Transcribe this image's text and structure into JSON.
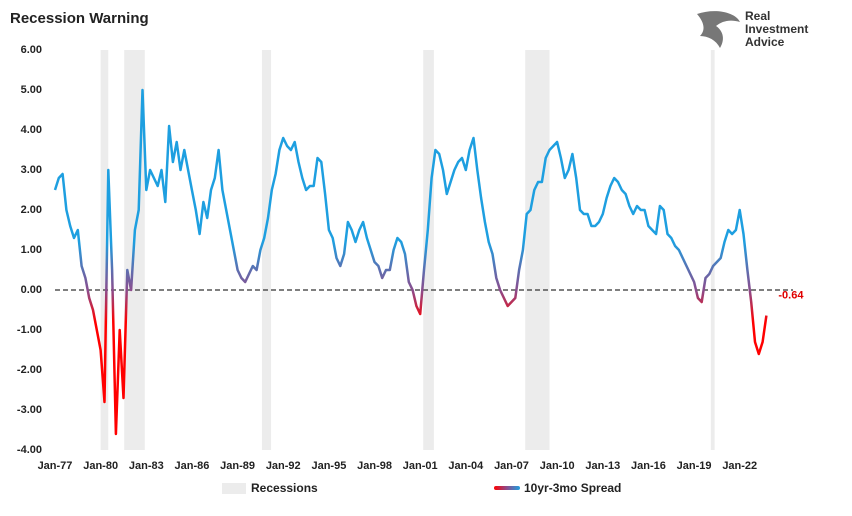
{
  "chart_data": {
    "type": "line",
    "title": "Recession Warning",
    "logo": [
      "Real",
      "Investment",
      "Advice"
    ],
    "x": [
      1977,
      1977.25,
      1977.5,
      1977.75,
      1978,
      1978.25,
      1978.5,
      1978.75,
      1979,
      1979.25,
      1979.5,
      1979.75,
      1980,
      1980.25,
      1980.5,
      1980.75,
      1981,
      1981.25,
      1981.5,
      1981.75,
      1982,
      1982.25,
      1982.5,
      1982.75,
      1983,
      1983.25,
      1983.5,
      1983.75,
      1984,
      1984.25,
      1984.5,
      1984.75,
      1985,
      1985.25,
      1985.5,
      1985.75,
      1986,
      1986.25,
      1986.5,
      1986.75,
      1987,
      1987.25,
      1987.5,
      1987.75,
      1988,
      1988.25,
      1988.5,
      1988.75,
      1989,
      1989.25,
      1989.5,
      1989.75,
      1990,
      1990.25,
      1990.5,
      1990.75,
      1991,
      1991.25,
      1991.5,
      1991.75,
      1992,
      1992.25,
      1992.5,
      1992.75,
      1993,
      1993.25,
      1993.5,
      1993.75,
      1994,
      1994.25,
      1994.5,
      1994.75,
      1995,
      1995.25,
      1995.5,
      1995.75,
      1996,
      1996.25,
      1996.5,
      1996.75,
      1997,
      1997.25,
      1997.5,
      1997.75,
      1998,
      1998.25,
      1998.5,
      1998.75,
      1999,
      1999.25,
      1999.5,
      1999.75,
      2000,
      2000.25,
      2000.5,
      2000.75,
      2001,
      2001.25,
      2001.5,
      2001.75,
      2002,
      2002.25,
      2002.5,
      2002.75,
      2003,
      2003.25,
      2003.5,
      2003.75,
      2004,
      2004.25,
      2004.5,
      2004.75,
      2005,
      2005.25,
      2005.5,
      2005.75,
      2006,
      2006.25,
      2006.5,
      2006.75,
      2007,
      2007.25,
      2007.5,
      2007.75,
      2008,
      2008.25,
      2008.5,
      2008.75,
      2009,
      2009.25,
      2009.5,
      2009.75,
      2010,
      2010.25,
      2010.5,
      2010.75,
      2011,
      2011.25,
      2011.5,
      2011.75,
      2012,
      2012.25,
      2012.5,
      2012.75,
      2013,
      2013.25,
      2013.5,
      2013.75,
      2014,
      2014.25,
      2014.5,
      2014.75,
      2015,
      2015.25,
      2015.5,
      2015.75,
      2016,
      2016.25,
      2016.5,
      2016.75,
      2017,
      2017.25,
      2017.5,
      2017.75,
      2018,
      2018.25,
      2018.5,
      2018.75,
      2019,
      2019.25,
      2019.5,
      2019.75,
      2020,
      2020.25,
      2020.5,
      2020.75,
      2021,
      2021.25,
      2021.5,
      2021.75,
      2022,
      2022.25,
      2022.5,
      2022.75,
      2023,
      2023.25,
      2023.5,
      2023.75
    ],
    "series": [
      {
        "name": "10yr-3mo Spread",
        "colors": [
          "#1e9fe0",
          "#8a4d8e",
          "#ff0000"
        ],
        "values": [
          2.5,
          2.8,
          2.9,
          2.0,
          1.6,
          1.3,
          1.5,
          0.6,
          0.3,
          -0.2,
          -0.5,
          -1.0,
          -1.5,
          -2.8,
          3.0,
          0.5,
          -3.6,
          -1.0,
          -2.7,
          0.5,
          0.0,
          1.5,
          2.0,
          5.0,
          2.5,
          3.0,
          2.8,
          2.6,
          3.0,
          2.2,
          4.1,
          3.2,
          3.7,
          3.0,
          3.5,
          3.0,
          2.5,
          2.0,
          1.4,
          2.2,
          1.8,
          2.5,
          2.8,
          3.5,
          2.5,
          2.0,
          1.5,
          1.0,
          0.5,
          0.3,
          0.2,
          0.4,
          0.6,
          0.5,
          1.0,
          1.3,
          1.8,
          2.5,
          2.9,
          3.5,
          3.8,
          3.6,
          3.5,
          3.7,
          3.2,
          2.8,
          2.5,
          2.6,
          2.6,
          3.3,
          3.2,
          2.4,
          1.5,
          1.3,
          0.8,
          0.6,
          0.9,
          1.7,
          1.5,
          1.2,
          1.5,
          1.7,
          1.3,
          1.0,
          0.7,
          0.6,
          0.3,
          0.5,
          0.5,
          1.0,
          1.3,
          1.2,
          0.9,
          0.2,
          0.0,
          -0.4,
          -0.6,
          0.5,
          1.5,
          2.8,
          3.5,
          3.4,
          3.0,
          2.4,
          2.7,
          3.0,
          3.2,
          3.3,
          3.0,
          3.5,
          3.8,
          3.0,
          2.3,
          1.7,
          1.2,
          0.9,
          0.3,
          0.0,
          -0.2,
          -0.4,
          -0.3,
          -0.2,
          0.5,
          1.0,
          1.9,
          2.0,
          2.5,
          2.7,
          2.7,
          3.3,
          3.5,
          3.6,
          3.7,
          3.3,
          2.8,
          3.0,
          3.4,
          2.8,
          2.0,
          1.9,
          1.9,
          1.6,
          1.6,
          1.7,
          1.9,
          2.3,
          2.6,
          2.8,
          2.7,
          2.5,
          2.4,
          2.1,
          1.9,
          2.1,
          2.0,
          2.0,
          1.6,
          1.5,
          1.4,
          2.1,
          2.0,
          1.4,
          1.3,
          1.1,
          1.0,
          0.8,
          0.6,
          0.4,
          0.2,
          -0.2,
          -0.3,
          0.3,
          0.4,
          0.6,
          0.7,
          0.8,
          1.2,
          1.5,
          1.4,
          1.5,
          2.0,
          1.4,
          0.5,
          -0.3,
          -1.3,
          -1.6,
          -1.3,
          -0.64
        ],
        "value_labels": {
          "187": "-0.64"
        }
      }
    ],
    "recessions": {
      "name": "Recessions",
      "color": "#ececec",
      "periods": [
        [
          1980.0,
          1980.5
        ],
        [
          1981.55,
          1982.9
        ],
        [
          1990.6,
          1991.2
        ],
        [
          2001.2,
          2001.9
        ],
        [
          2007.9,
          2009.5
        ],
        [
          2020.1,
          2020.35
        ]
      ]
    },
    "hline": 0,
    "xlim": [
      1977,
      2025.5
    ],
    "xticks": [
      {
        "value": 1977,
        "label": "Jan-77"
      },
      {
        "value": 1980,
        "label": "Jan-80"
      },
      {
        "value": 1983,
        "label": "Jan-83"
      },
      {
        "value": 1986,
        "label": "Jan-86"
      },
      {
        "value": 1989,
        "label": "Jan-89"
      },
      {
        "value": 1992,
        "label": "Jan-92"
      },
      {
        "value": 1995,
        "label": "Jan-95"
      },
      {
        "value": 1998,
        "label": "Jan-98"
      },
      {
        "value": 2001,
        "label": "Jan-01"
      },
      {
        "value": 2004,
        "label": "Jan-04"
      },
      {
        "value": 2007,
        "label": "Jan-07"
      },
      {
        "value": 2010,
        "label": "Jan-10"
      },
      {
        "value": 2013,
        "label": "Jan-13"
      },
      {
        "value": 2016,
        "label": "Jan-16"
      },
      {
        "value": 2019,
        "label": "Jan-19"
      },
      {
        "value": 2022,
        "label": "Jan-22"
      }
    ],
    "ylim": [
      -4,
      6
    ],
    "yticks": [
      {
        "value": -4,
        "label": "-4.00"
      },
      {
        "value": -3,
        "label": "-3.00"
      },
      {
        "value": -2,
        "label": "-2.00"
      },
      {
        "value": -1,
        "label": "-1.00"
      },
      {
        "value": 0,
        "label": "0.00"
      },
      {
        "value": 1,
        "label": "1.00"
      },
      {
        "value": 2,
        "label": "2.00"
      },
      {
        "value": 3,
        "label": "3.00"
      },
      {
        "value": 4,
        "label": "4.00"
      },
      {
        "value": 5,
        "label": "5.00"
      },
      {
        "value": 6,
        "label": "6.00"
      }
    ],
    "legend": "bottom"
  }
}
